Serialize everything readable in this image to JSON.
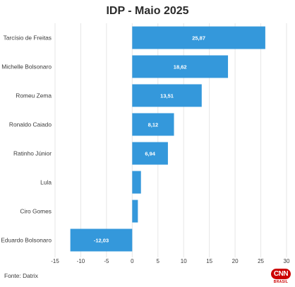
{
  "chart_data": {
    "type": "bar",
    "orientation": "horizontal",
    "title": "IDP - Maio 2025",
    "categories": [
      "Tarcísio de Freitas",
      "Michelle Bolsonaro",
      "Romeu Zema",
      "Ronaldo Caiado",
      "Ratinho Júnior",
      "Lula",
      "Ciro Gomes",
      "Eduardo Bolsonaro"
    ],
    "values": [
      25.87,
      18.62,
      13.51,
      8.12,
      6.94,
      1.7,
      1.1,
      -12.03
    ],
    "data_labels": [
      "25,87",
      "18,62",
      "13,51",
      "8,12",
      "6,94",
      "",
      "",
      "-12,03"
    ],
    "xlim": [
      -15,
      30
    ],
    "xticks": [
      -15,
      -10,
      -5,
      0,
      5,
      10,
      15,
      20,
      25,
      30
    ],
    "xtick_labels": [
      "-15",
      "-10",
      "-5",
      "0",
      "5",
      "10",
      "15",
      "20",
      "25",
      "30"
    ],
    "xlabel": "",
    "ylabel": "",
    "grid": true,
    "bar_color": "#3498db"
  },
  "footer": {
    "source": "Fonte: Datrix"
  },
  "logo": {
    "brand": "CNN",
    "sub": "BRASIL"
  }
}
